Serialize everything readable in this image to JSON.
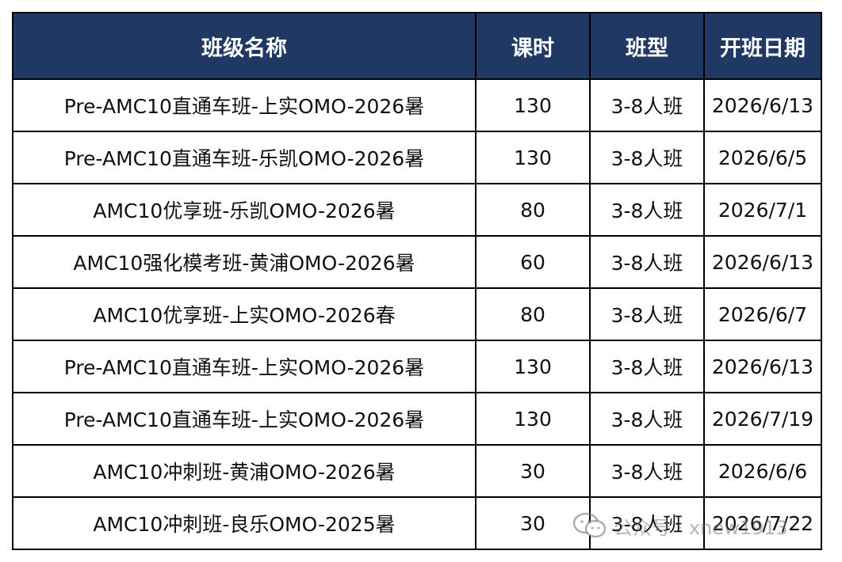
{
  "table": {
    "headers": [
      "班级名称",
      "课时",
      "班型",
      "开班日期"
    ],
    "rows": [
      [
        "Pre-AMC10直通车班-上实OMO-2026暑",
        "130",
        "3-8人班",
        "2026/6/13"
      ],
      [
        "Pre-AMC10直通车班-乐凯OMO-2026暑",
        "130",
        "3-8人班",
        "2026/6/5"
      ],
      [
        "AMC10优享班-乐凯OMO-2026暑",
        "80",
        "3-8人班",
        "2026/7/1"
      ],
      [
        "AMC10强化模考班-黄浦OMO-2026暑",
        "60",
        "3-8人班",
        "2026/6/13"
      ],
      [
        "AMC10优享班-上实OMO-2026春",
        "80",
        "3-8人班",
        "2026/6/7"
      ],
      [
        "Pre-AMC10直通车班-上实OMO-2026暑",
        "130",
        "3-8人班",
        "2026/6/13"
      ],
      [
        "Pre-AMC10直通车班-上实OMO-2026暑",
        "130",
        "3-8人班",
        "2026/7/19"
      ],
      [
        "AMC10冲刺班-黄浦OMO-2026暑",
        "30",
        "3-8人班",
        "2026/6/6"
      ],
      [
        "AMC10冲刺班-良乐OMO-2025暑",
        "30",
        "3-8人班",
        "2026/7/22"
      ]
    ]
  },
  "watermark": {
    "text": "公众号 · xnew1913",
    "icon": "wechat-icon"
  },
  "colors": {
    "header_bg": "#1f3864",
    "header_text": "#ffffff",
    "border": "#000000"
  }
}
